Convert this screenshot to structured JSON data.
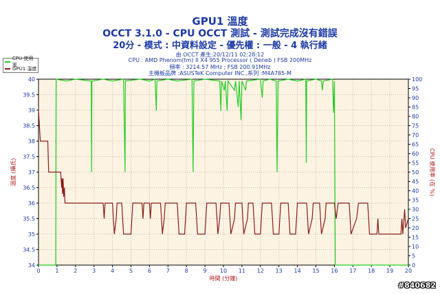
{
  "title_lines": [
    "GPU1 溫度",
    "OCCT 3.1.0 - CPU OCCT 測試 - 測試完成沒有錯誤",
    "20分 - 模式 : 中資料設定 - 優先權 : 一般 - 4 執行緒"
  ],
  "info_lines": [
    "由 OCCT 產生:20/12/11 02:28:12",
    "CPU : AMD Phenom(tm) II X4 955 Processor ( Deneb ) FSB 200MHz",
    "頻率 : 3214.57 MHz ; FSB 200.91MHz",
    "主機板品牌 :ASUSTeK Computer INC.,系列 :M4A785-M"
  ],
  "watermark": "#840682",
  "colors": {
    "cpu": "#22cc22",
    "gpu": "#8b1a1a",
    "plot_bg": "#fdf3e2",
    "grid": "#bbbbbb",
    "text": "#1c3aa6"
  },
  "chart_data": {
    "type": "line",
    "xlabel": "時間 (分鐘)",
    "ylabel_left": "溫度 (攝氏)",
    "ylabel_right": "CPU 使用率 (在 %)",
    "xlim": [
      0,
      20
    ],
    "ylim_left": [
      34,
      40
    ],
    "ylim_right": [
      0,
      100
    ],
    "x_ticks": [
      "0",
      "1",
      "2",
      "3",
      "4",
      "5",
      "6",
      "7",
      "8",
      "9",
      "10",
      "11",
      "12",
      "13",
      "14",
      "15",
      "16",
      "17",
      "18",
      "19",
      "20"
    ],
    "y_left_ticks": [
      "34",
      "34.5",
      "35",
      "35.5",
      "36",
      "36.5",
      "37",
      "37.5",
      "38",
      "38.5",
      "39",
      "39.5",
      "40"
    ],
    "y_right_ticks": [
      "0",
      "5",
      "10",
      "15",
      "20",
      "25",
      "30",
      "35",
      "40",
      "45",
      "50",
      "55",
      "60",
      "65",
      "70",
      "75",
      "80",
      "85",
      "90",
      "95",
      "100"
    ],
    "legend": [
      "CPU 使用率",
      "GPU1 溫度"
    ],
    "series": [
      {
        "name": "CPU 使用率",
        "axis": "right",
        "points": [
          [
            0,
            0
          ],
          [
            0.93,
            0
          ],
          [
            0.95,
            100
          ],
          [
            1.5,
            99
          ],
          [
            2.0,
            100
          ],
          [
            2.85,
            99
          ],
          [
            2.87,
            50
          ],
          [
            2.89,
            99
          ],
          [
            3.5,
            100
          ],
          [
            4.0,
            99
          ],
          [
            4.6,
            100
          ],
          [
            4.68,
            50
          ],
          [
            4.7,
            99
          ],
          [
            5.5,
            100
          ],
          [
            6.0,
            99
          ],
          [
            6.3,
            100
          ],
          [
            6.37,
            83
          ],
          [
            6.4,
            99
          ],
          [
            7.0,
            100
          ],
          [
            7.5,
            99
          ],
          [
            8.3,
            100
          ],
          [
            8.36,
            50
          ],
          [
            8.4,
            99
          ],
          [
            9.0,
            100
          ],
          [
            9.8,
            99
          ],
          [
            9.86,
            83
          ],
          [
            9.9,
            99
          ],
          [
            10.05,
            94
          ],
          [
            10.1,
            99
          ],
          [
            10.2,
            83
          ],
          [
            10.25,
            99
          ],
          [
            10.6,
            94
          ],
          [
            10.65,
            99
          ],
          [
            10.8,
            85
          ],
          [
            10.85,
            99
          ],
          [
            10.95,
            78
          ],
          [
            11.0,
            99
          ],
          [
            11.2,
            94
          ],
          [
            11.25,
            99
          ],
          [
            12.0,
            100
          ],
          [
            12.1,
            90
          ],
          [
            12.15,
            99
          ],
          [
            12.5,
            100
          ],
          [
            12.85,
            99
          ],
          [
            12.9,
            50
          ],
          [
            12.95,
            99
          ],
          [
            13.5,
            100
          ],
          [
            14.0,
            99
          ],
          [
            14.45,
            100
          ],
          [
            14.48,
            55
          ],
          [
            14.5,
            99
          ],
          [
            15.0,
            100
          ],
          [
            15.3,
            99
          ],
          [
            15.35,
            94
          ],
          [
            15.4,
            99
          ],
          [
            15.9,
            100
          ],
          [
            15.95,
            82
          ],
          [
            16.0,
            99
          ],
          [
            16.05,
            0
          ],
          [
            20,
            0
          ]
        ]
      },
      {
        "name": "GPU1 溫度",
        "axis": "left",
        "points": [
          [
            0,
            39
          ],
          [
            0.05,
            38.5
          ],
          [
            0.1,
            38
          ],
          [
            0.5,
            38
          ],
          [
            0.55,
            37
          ],
          [
            1.2,
            37
          ],
          [
            1.25,
            36.5
          ],
          [
            1.27,
            36.8
          ],
          [
            1.3,
            36.3
          ],
          [
            1.33,
            36.8
          ],
          [
            1.36,
            36.2
          ],
          [
            1.4,
            36.5
          ],
          [
            1.43,
            36
          ],
          [
            3.0,
            36
          ],
          [
            3.5,
            36
          ],
          [
            3.55,
            35.5
          ],
          [
            3.6,
            36
          ],
          [
            4.0,
            36
          ],
          [
            4.05,
            35.5
          ],
          [
            4.1,
            35
          ],
          [
            4.2,
            35.5
          ],
          [
            4.25,
            36
          ],
          [
            4.5,
            36
          ],
          [
            4.55,
            35.5
          ],
          [
            4.6,
            35
          ],
          [
            5.0,
            35
          ],
          [
            5.05,
            35.5
          ],
          [
            5.1,
            36
          ],
          [
            5.6,
            36
          ],
          [
            5.65,
            35.5
          ],
          [
            5.7,
            36
          ],
          [
            6.0,
            36
          ],
          [
            6.05,
            35.5
          ],
          [
            6.1,
            36
          ],
          [
            6.6,
            36
          ],
          [
            6.65,
            35.5
          ],
          [
            6.7,
            35
          ],
          [
            6.8,
            35.5
          ],
          [
            6.85,
            36
          ],
          [
            7.5,
            36
          ],
          [
            7.55,
            35.5
          ],
          [
            7.6,
            35
          ],
          [
            7.9,
            35
          ],
          [
            7.95,
            35.5
          ],
          [
            8.0,
            36
          ],
          [
            8.5,
            36
          ],
          [
            8.55,
            35.5
          ],
          [
            8.6,
            35
          ],
          [
            9.0,
            35
          ],
          [
            9.05,
            35.5
          ],
          [
            9.1,
            36
          ],
          [
            9.6,
            36
          ],
          [
            9.65,
            35.5
          ],
          [
            9.7,
            35
          ],
          [
            9.8,
            35.5
          ],
          [
            9.85,
            36
          ],
          [
            10.3,
            36
          ],
          [
            10.35,
            35.5
          ],
          [
            10.4,
            35
          ],
          [
            10.6,
            35.5
          ],
          [
            10.65,
            36
          ],
          [
            11.0,
            36
          ],
          [
            11.05,
            35.5
          ],
          [
            11.1,
            35
          ],
          [
            11.3,
            35.5
          ],
          [
            11.35,
            36
          ],
          [
            11.6,
            36
          ],
          [
            11.65,
            35.5
          ],
          [
            11.7,
            35
          ],
          [
            12.0,
            35
          ],
          [
            12.05,
            35.5
          ],
          [
            12.1,
            36
          ],
          [
            12.6,
            36
          ],
          [
            12.65,
            35.5
          ],
          [
            12.7,
            35
          ],
          [
            13.0,
            35
          ],
          [
            13.05,
            35.5
          ],
          [
            13.1,
            36
          ],
          [
            13.5,
            36
          ],
          [
            13.55,
            35.5
          ],
          [
            13.6,
            35
          ],
          [
            13.9,
            35
          ],
          [
            13.95,
            35.5
          ],
          [
            14.0,
            36
          ],
          [
            14.5,
            36
          ],
          [
            14.55,
            35.5
          ],
          [
            14.6,
            35
          ],
          [
            14.8,
            35.5
          ],
          [
            14.85,
            36
          ],
          [
            15.2,
            36
          ],
          [
            15.25,
            35.5
          ],
          [
            15.3,
            35
          ],
          [
            15.5,
            35.5
          ],
          [
            15.55,
            36
          ],
          [
            16.0,
            36
          ],
          [
            16.1,
            35.5
          ],
          [
            16.2,
            36
          ],
          [
            16.8,
            36
          ],
          [
            16.85,
            35.5
          ],
          [
            16.9,
            35
          ],
          [
            17.2,
            35.5
          ],
          [
            17.3,
            36
          ],
          [
            17.8,
            36
          ],
          [
            17.85,
            35.5
          ],
          [
            17.9,
            35
          ],
          [
            18.3,
            35
          ],
          [
            18.35,
            35.5
          ],
          [
            18.4,
            35
          ],
          [
            19.6,
            35
          ],
          [
            19.65,
            35.5
          ],
          [
            19.7,
            35
          ],
          [
            19.8,
            35.8
          ],
          [
            19.85,
            35.2
          ],
          [
            20,
            35.5
          ]
        ]
      }
    ]
  }
}
